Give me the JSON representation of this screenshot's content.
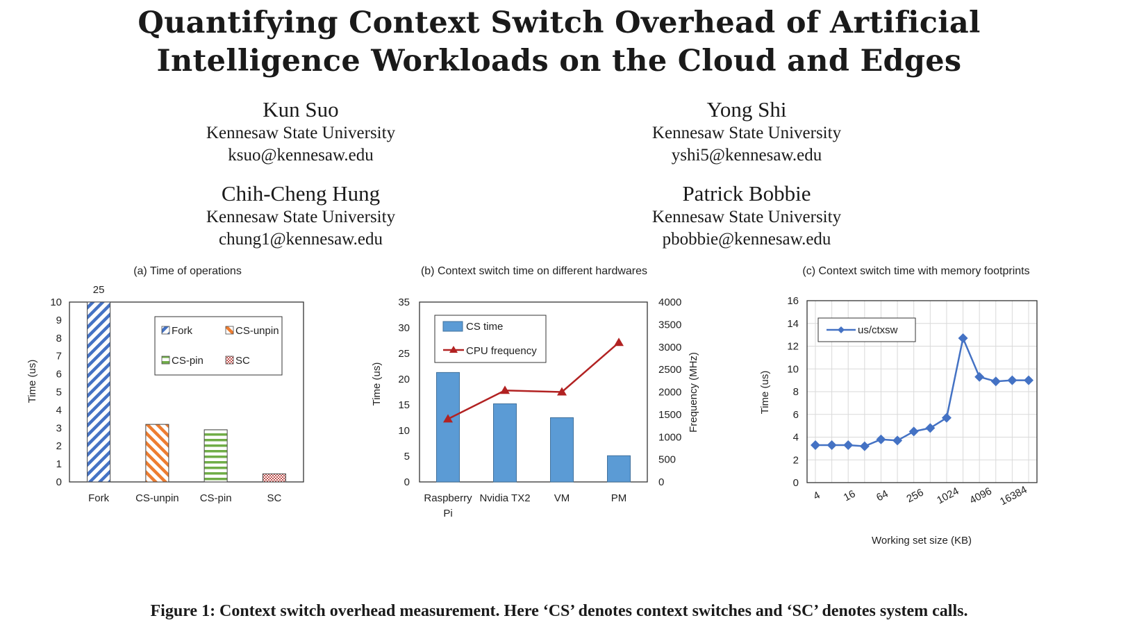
{
  "paper": {
    "title_line1": "Quantifying Context Switch Overhead of Artificial",
    "title_line2": "Intelligence Workloads on the Cloud and Edges",
    "authors": [
      {
        "name": "Kun Suo",
        "affiliation": "Kennesaw State University",
        "email": "ksuo@kennesaw.edu"
      },
      {
        "name": "Yong Shi",
        "affiliation": "Kennesaw State University",
        "email": "yshi5@kennesaw.edu"
      },
      {
        "name": "Chih-Cheng Hung",
        "affiliation": "Kennesaw State University",
        "email": "chung1@kennesaw.edu"
      },
      {
        "name": "Patrick Bobbie",
        "affiliation": "Kennesaw State University",
        "email": "pbobbie@kennesaw.edu"
      }
    ],
    "caption": "Figure 1: Context switch overhead measurement. Here ‘CS’ denotes context switches and ‘SC’ denotes system calls."
  },
  "chart_data": [
    {
      "type": "bar",
      "title": "(a) Time of operations",
      "ylabel": "Time (us)",
      "categories": [
        "Fork",
        "CS-unpin",
        "CS-pin",
        "SC"
      ],
      "values": [
        25,
        3.2,
        2.9,
        0.45
      ],
      "ylim": [
        0,
        10
      ],
      "yticks": [
        0,
        1,
        2,
        3,
        4,
        5,
        6,
        7,
        8,
        9,
        10
      ],
      "data_labels": [
        "25",
        "",
        "",
        ""
      ],
      "legend": [
        "Fork",
        "CS-unpin",
        "CS-pin",
        "SC"
      ],
      "legend_position": "top-right",
      "colors": [
        "#4472c4",
        "#ed7d31",
        "#70ad47",
        "#c0504d"
      ],
      "patterns": [
        "diagonal-up",
        "diagonal-down",
        "horizontal",
        "checker"
      ]
    },
    {
      "type": "bar",
      "title": "(b) Context switch time on different hardwares",
      "ylabel": "Time (us)",
      "y2label": "Frequency (MHz)",
      "categories": [
        "Raspberry Pi",
        "Nvidia TX2",
        "VM",
        "PM"
      ],
      "series": [
        {
          "name": "CS time",
          "type": "bar",
          "axis": "left",
          "values": [
            21.3,
            15.2,
            12.5,
            5.1
          ],
          "color": "#5b9bd5"
        },
        {
          "name": "CPU frequency",
          "type": "line",
          "axis": "right",
          "values": [
            1400,
            2035,
            2000,
            3100
          ],
          "color": "#b22222"
        }
      ],
      "ylim": [
        0,
        35
      ],
      "yticks": [
        0,
        5,
        10,
        15,
        20,
        25,
        30,
        35
      ],
      "y2lim": [
        0,
        4000
      ],
      "y2ticks": [
        0,
        500,
        1000,
        1500,
        2000,
        2500,
        3000,
        3500,
        4000
      ],
      "legend_position": "top-left"
    },
    {
      "type": "line",
      "title": "(c) Context switch time with memory footprints",
      "xlabel": "Working set size (KB)",
      "ylabel": "Time (us)",
      "x": [
        4,
        8,
        16,
        32,
        64,
        128,
        256,
        512,
        1024,
        2048,
        4096,
        8192,
        16384,
        32768
      ],
      "xtick_labels": [
        "4",
        "16",
        "64",
        "256",
        "1024",
        "4096",
        "16384"
      ],
      "series": [
        {
          "name": "us/ctxsw",
          "values": [
            3.3,
            3.3,
            3.3,
            3.2,
            3.8,
            3.7,
            4.5,
            4.8,
            5.7,
            12.7,
            9.3,
            8.9,
            9.0,
            9.0
          ],
          "color": "#4472c4"
        }
      ],
      "ylim": [
        0,
        16
      ],
      "yticks": [
        0,
        2,
        4,
        6,
        8,
        10,
        12,
        14,
        16
      ],
      "grid": true,
      "legend_position": "top-left"
    }
  ]
}
